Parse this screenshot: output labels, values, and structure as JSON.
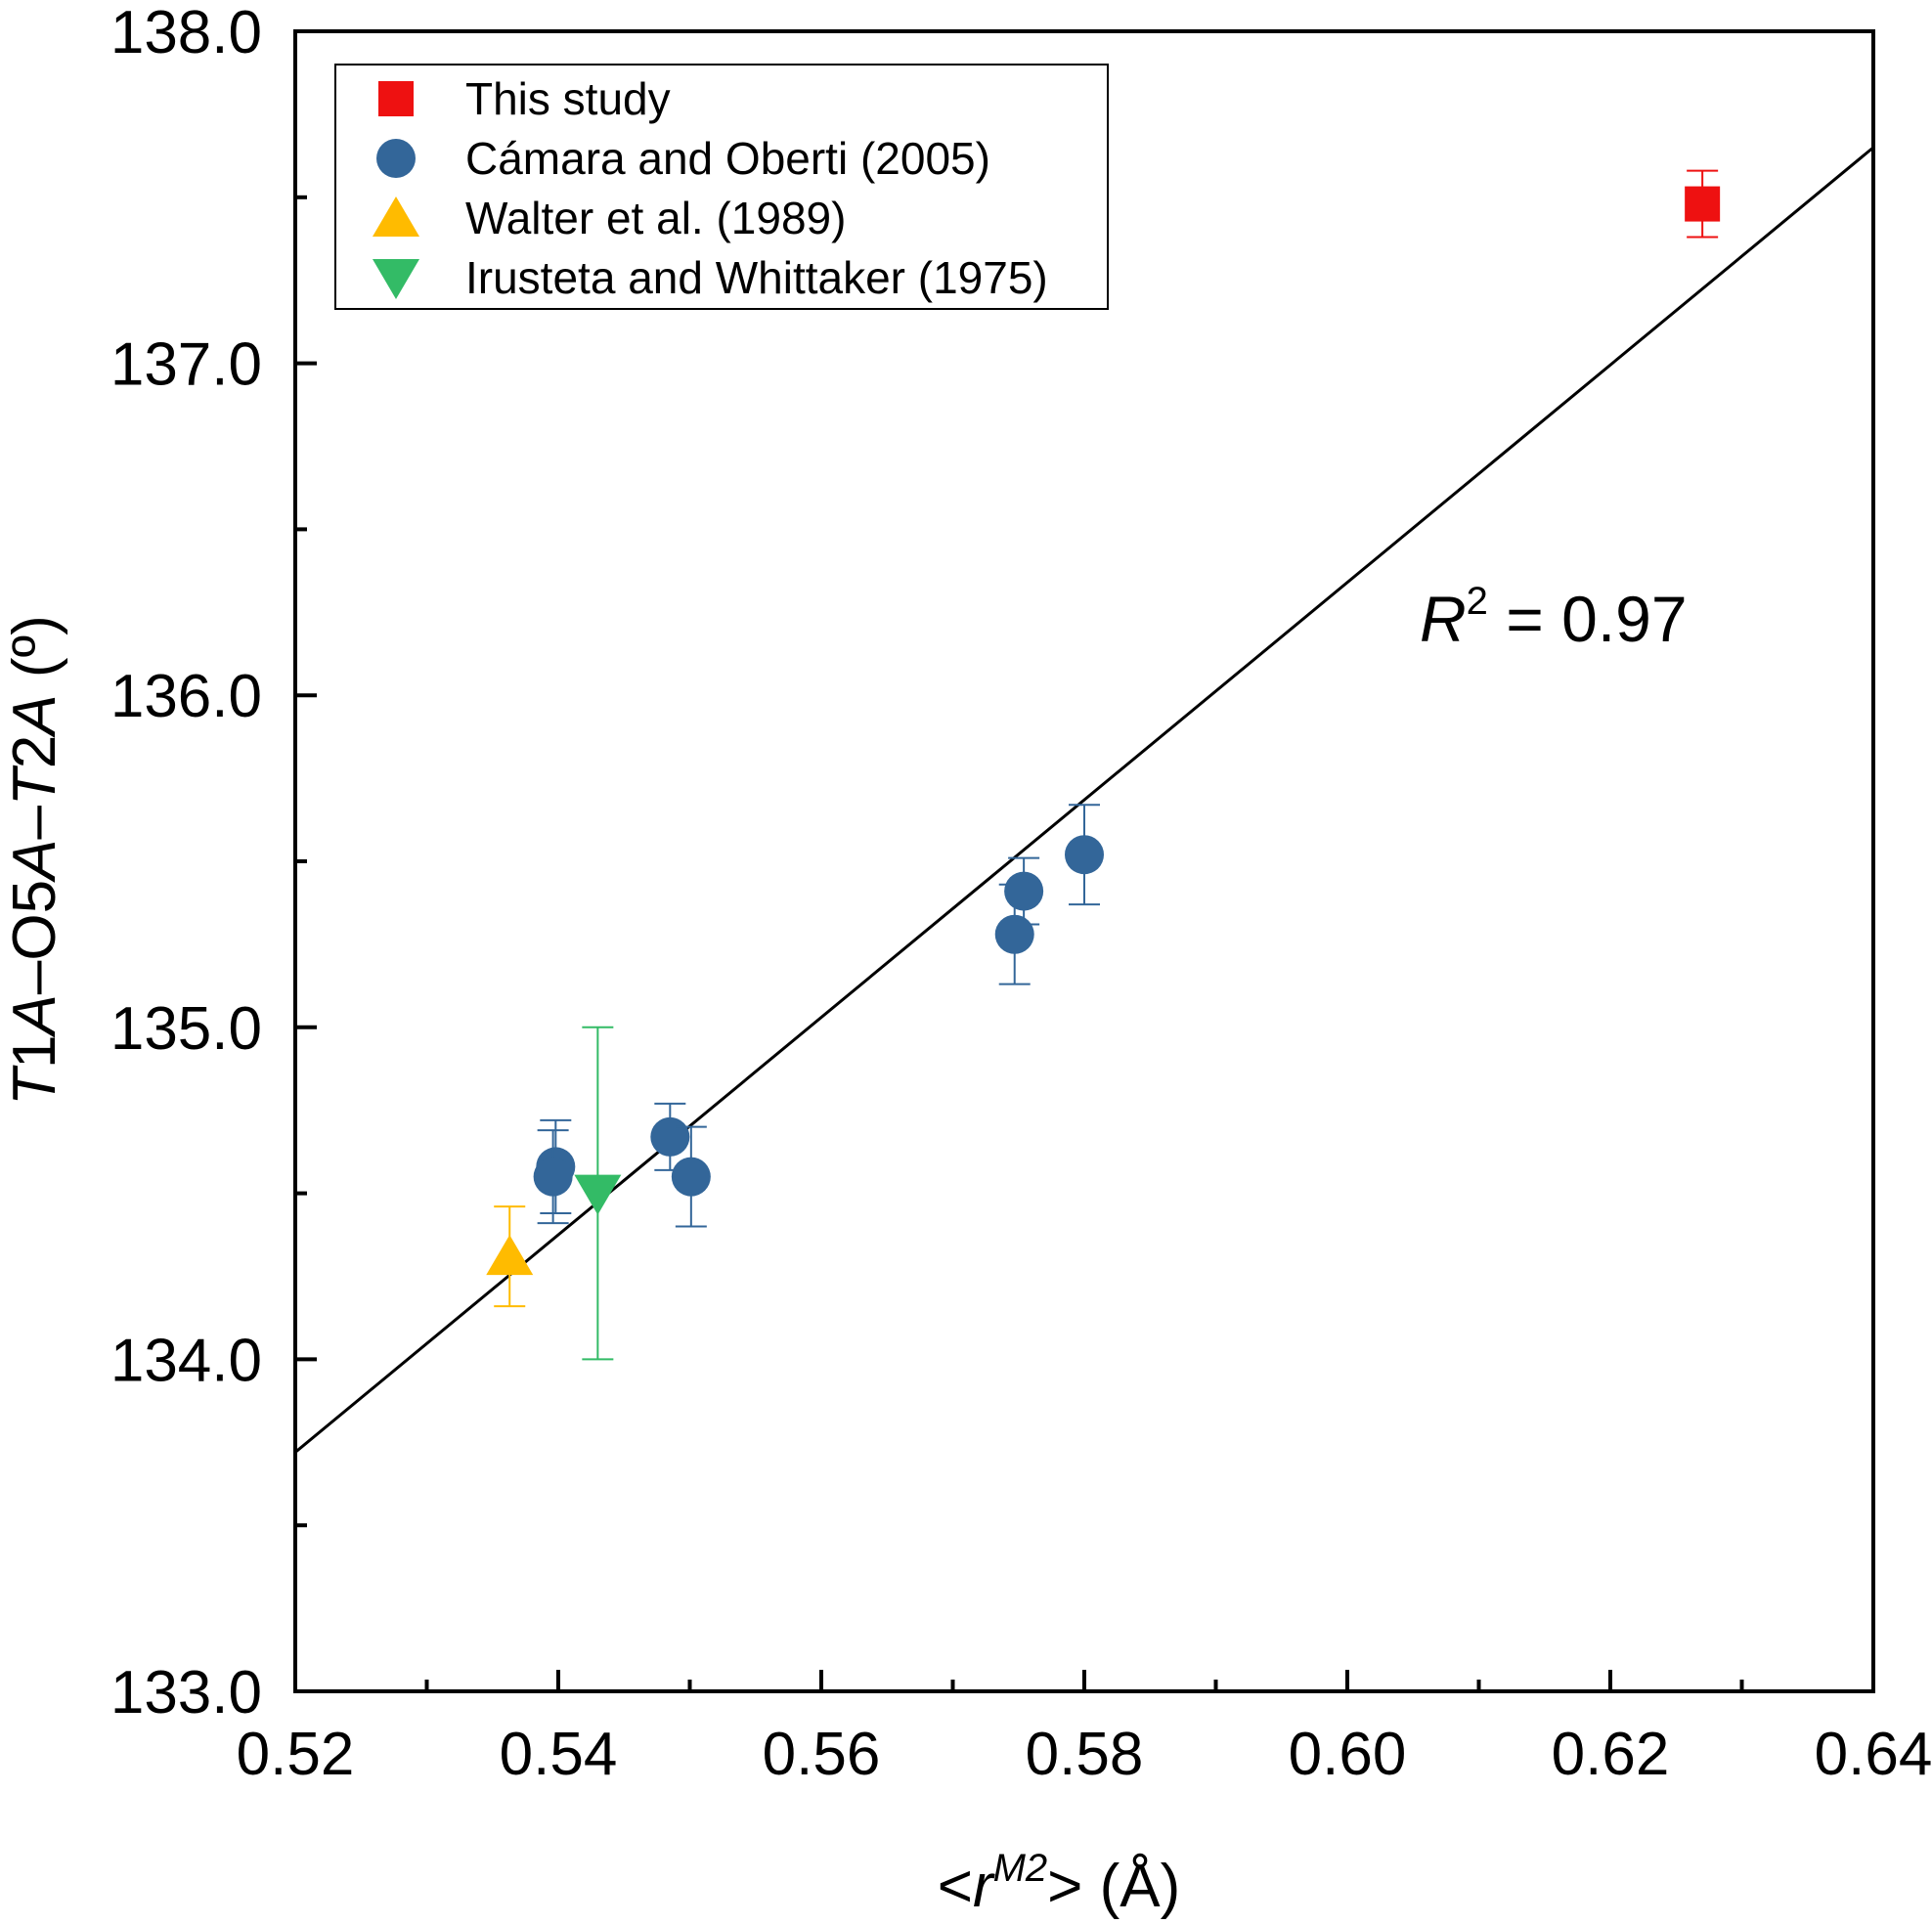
{
  "chart_data": {
    "type": "scatter",
    "xlim": [
      0.52,
      0.64
    ],
    "ylim": [
      133.0,
      138.0
    ],
    "x_ticks": [
      "0.52",
      "0.54",
      "0.56",
      "0.58",
      "0.60",
      "0.62",
      "0.64"
    ],
    "y_ticks": [
      "133.0",
      "134.0",
      "135.0",
      "136.0",
      "137.0",
      "138.0"
    ],
    "xlabel": {
      "pre": "<",
      "var": "r",
      "sup": "M2",
      "post": "> (Å)"
    },
    "ylabel": {
      "p1": "T",
      "p2": "1",
      "p3": "A",
      "p4": "–O5",
      "p5": "A",
      "p6": "–",
      "p7": "T",
      "p8": "2",
      "p9": "A",
      "p10": " (º)"
    },
    "annotation": {
      "var": "R",
      "sup": "2",
      "text": " = 0.97"
    },
    "legend_position": "top-left",
    "fit_line": {
      "x": [
        0.52,
        0.64
      ],
      "y": [
        133.72,
        137.65
      ]
    },
    "series": [
      {
        "name": "This study",
        "marker": "square",
        "color": "#ee1111",
        "points": [
          {
            "x": 0.627,
            "y": 137.48,
            "err": 0.1
          }
        ]
      },
      {
        "name": "Cámara and Oberti (2005)",
        "marker": "circle",
        "color": "#336699",
        "points": [
          {
            "x": 0.5398,
            "y": 134.58,
            "err": 0.14
          },
          {
            "x": 0.5396,
            "y": 134.55,
            "err": 0.14
          },
          {
            "x": 0.5485,
            "y": 134.67,
            "err": 0.1
          },
          {
            "x": 0.5501,
            "y": 134.55,
            "err": 0.15
          },
          {
            "x": 0.5747,
            "y": 135.28,
            "err": 0.15
          },
          {
            "x": 0.5754,
            "y": 135.41,
            "err": 0.1
          },
          {
            "x": 0.58,
            "y": 135.52,
            "err": 0.15
          }
        ]
      },
      {
        "name": "Walter et al. (1989)",
        "marker": "triangle-up",
        "color": "#ffbb00",
        "points": [
          {
            "x": 0.5363,
            "y": 134.31,
            "err": 0.15
          }
        ]
      },
      {
        "name": "Irusteta and Whittaker (1975)",
        "marker": "triangle-down",
        "color": "#33bb66",
        "points": [
          {
            "x": 0.543,
            "y": 134.5,
            "err": 0.5
          }
        ]
      }
    ]
  }
}
